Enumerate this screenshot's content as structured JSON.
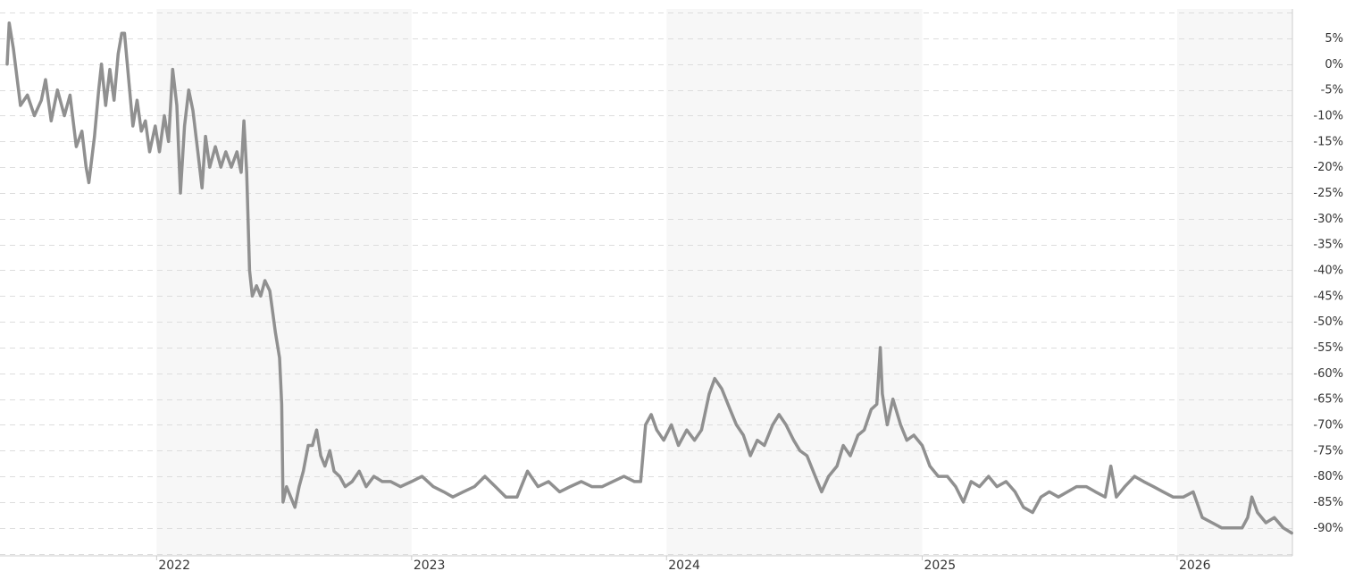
{
  "chart_data": {
    "type": "line",
    "title": "",
    "xlabel": "",
    "ylabel": "",
    "y_unit": "%",
    "ylim": [
      -92,
      8
    ],
    "xlim": [
      "2021-06-01",
      "2026-06-15"
    ],
    "grid": "horizontal dashed",
    "legend": "none",
    "year_labels": [
      "2022",
      "2023",
      "2024",
      "2025",
      "2026"
    ],
    "year_dates": [
      "2022-01-01",
      "2023-01-01",
      "2024-01-01",
      "2025-01-01",
      "2026-01-01"
    ],
    "shaded_years": [
      "2022",
      "2024",
      "2026"
    ],
    "y_ticks": [
      5,
      0,
      -5,
      -10,
      -15,
      -20,
      -25,
      -30,
      -35,
      -40,
      -45,
      -50,
      -55,
      -60,
      -65,
      -70,
      -75,
      -80,
      -85,
      -90
    ],
    "y_tick_labels": [
      "5%",
      "0%",
      "-5%",
      "-10%",
      "-15%",
      "-20%",
      "-25%",
      "-30%",
      "-35%",
      "-40%",
      "-45%",
      "-50%",
      "-55%",
      "-60%",
      "-65%",
      "-70%",
      "-75%",
      "-80%",
      "-85%",
      "-90%"
    ],
    "series": [
      {
        "color": "#909090",
        "points": [
          [
            "2021-06-01",
            0
          ],
          [
            "2021-06-04",
            8
          ],
          [
            "2021-06-10",
            3
          ],
          [
            "2021-06-20",
            -8
          ],
          [
            "2021-06-30",
            -6
          ],
          [
            "2021-07-10",
            -10
          ],
          [
            "2021-07-20",
            -7
          ],
          [
            "2021-07-26",
            -3
          ],
          [
            "2021-08-03",
            -11
          ],
          [
            "2021-08-12",
            -5
          ],
          [
            "2021-08-22",
            -10
          ],
          [
            "2021-08-30",
            -6
          ],
          [
            "2021-09-08",
            -16
          ],
          [
            "2021-09-16",
            -13
          ],
          [
            "2021-09-22",
            -20
          ],
          [
            "2021-09-26",
            -23
          ],
          [
            "2021-10-04",
            -14
          ],
          [
            "2021-10-10",
            -5
          ],
          [
            "2021-10-14",
            0
          ],
          [
            "2021-10-20",
            -8
          ],
          [
            "2021-10-26",
            -1
          ],
          [
            "2021-11-01",
            -7
          ],
          [
            "2021-11-07",
            2
          ],
          [
            "2021-11-12",
            6
          ],
          [
            "2021-11-16",
            6
          ],
          [
            "2021-11-22",
            -3
          ],
          [
            "2021-11-28",
            -12
          ],
          [
            "2021-12-04",
            -7
          ],
          [
            "2021-12-10",
            -13
          ],
          [
            "2021-12-16",
            -11
          ],
          [
            "2021-12-22",
            -17
          ],
          [
            "2021-12-30",
            -12
          ],
          [
            "2022-01-05",
            -17
          ],
          [
            "2022-01-12",
            -10
          ],
          [
            "2022-01-18",
            -15
          ],
          [
            "2022-01-24",
            -1
          ],
          [
            "2022-01-30",
            -8
          ],
          [
            "2022-02-04",
            -25
          ],
          [
            "2022-02-10",
            -12
          ],
          [
            "2022-02-16",
            -5
          ],
          [
            "2022-02-22",
            -9
          ],
          [
            "2022-03-01",
            -17
          ],
          [
            "2022-03-07",
            -24
          ],
          [
            "2022-03-12",
            -14
          ],
          [
            "2022-03-18",
            -20
          ],
          [
            "2022-03-26",
            -16
          ],
          [
            "2022-04-03",
            -20
          ],
          [
            "2022-04-10",
            -17
          ],
          [
            "2022-04-18",
            -20
          ],
          [
            "2022-04-26",
            -17
          ],
          [
            "2022-05-02",
            -21
          ],
          [
            "2022-05-06",
            -11
          ],
          [
            "2022-05-10",
            -21
          ],
          [
            "2022-05-14",
            -40
          ],
          [
            "2022-05-18",
            -45
          ],
          [
            "2022-05-24",
            -43
          ],
          [
            "2022-05-30",
            -45
          ],
          [
            "2022-06-05",
            -42
          ],
          [
            "2022-06-12",
            -44
          ],
          [
            "2022-06-20",
            -52
          ],
          [
            "2022-06-26",
            -57
          ],
          [
            "2022-06-29",
            -66
          ],
          [
            "2022-07-01",
            -85
          ],
          [
            "2022-07-06",
            -82
          ],
          [
            "2022-07-12",
            -84
          ],
          [
            "2022-07-18",
            -86
          ],
          [
            "2022-07-24",
            -82
          ],
          [
            "2022-07-30",
            -79
          ],
          [
            "2022-08-06",
            -74
          ],
          [
            "2022-08-12",
            -74
          ],
          [
            "2022-08-18",
            -71
          ],
          [
            "2022-08-24",
            -76
          ],
          [
            "2022-08-30",
            -78
          ],
          [
            "2022-09-06",
            -75
          ],
          [
            "2022-09-12",
            -79
          ],
          [
            "2022-09-20",
            -80
          ],
          [
            "2022-09-28",
            -82
          ],
          [
            "2022-10-08",
            -81
          ],
          [
            "2022-10-18",
            -79
          ],
          [
            "2022-10-28",
            -82
          ],
          [
            "2022-11-08",
            -80
          ],
          [
            "2022-11-20",
            -81
          ],
          [
            "2022-12-02",
            -81
          ],
          [
            "2022-12-16",
            -82
          ],
          [
            "2023-01-01",
            -81
          ],
          [
            "2023-01-16",
            -80
          ],
          [
            "2023-02-01",
            -82
          ],
          [
            "2023-02-16",
            -83
          ],
          [
            "2023-03-01",
            -84
          ],
          [
            "2023-03-16",
            -83
          ],
          [
            "2023-04-01",
            -82
          ],
          [
            "2023-04-16",
            -80
          ],
          [
            "2023-05-01",
            -82
          ],
          [
            "2023-05-16",
            -84
          ],
          [
            "2023-06-01",
            -84
          ],
          [
            "2023-06-16",
            -79
          ],
          [
            "2023-07-01",
            -82
          ],
          [
            "2023-07-16",
            -81
          ],
          [
            "2023-08-01",
            -83
          ],
          [
            "2023-08-16",
            -82
          ],
          [
            "2023-09-01",
            -81
          ],
          [
            "2023-09-16",
            -82
          ],
          [
            "2023-10-01",
            -82
          ],
          [
            "2023-10-16",
            -81
          ],
          [
            "2023-11-01",
            -80
          ],
          [
            "2023-11-16",
            -81
          ],
          [
            "2023-11-25",
            -81
          ],
          [
            "2023-12-02",
            -70
          ],
          [
            "2023-12-10",
            -68
          ],
          [
            "2023-12-18",
            -71
          ],
          [
            "2023-12-28",
            -73
          ],
          [
            "2024-01-08",
            -70
          ],
          [
            "2024-01-18",
            -74
          ],
          [
            "2024-01-30",
            -71
          ],
          [
            "2024-02-10",
            -73
          ],
          [
            "2024-02-20",
            -71
          ],
          [
            "2024-03-02",
            -64
          ],
          [
            "2024-03-10",
            -61
          ],
          [
            "2024-03-20",
            -63
          ],
          [
            "2024-04-01",
            -67
          ],
          [
            "2024-04-10",
            -70
          ],
          [
            "2024-04-20",
            -72
          ],
          [
            "2024-04-30",
            -76
          ],
          [
            "2024-05-10",
            -73
          ],
          [
            "2024-05-20",
            -74
          ],
          [
            "2024-06-01",
            -70
          ],
          [
            "2024-06-10",
            -68
          ],
          [
            "2024-06-20",
            -70
          ],
          [
            "2024-07-01",
            -73
          ],
          [
            "2024-07-10",
            -75
          ],
          [
            "2024-07-20",
            -76
          ],
          [
            "2024-08-01",
            -80
          ],
          [
            "2024-08-10",
            -83
          ],
          [
            "2024-08-20",
            -80
          ],
          [
            "2024-09-01",
            -78
          ],
          [
            "2024-09-10",
            -74
          ],
          [
            "2024-09-20",
            -76
          ],
          [
            "2024-10-01",
            -72
          ],
          [
            "2024-10-10",
            -71
          ],
          [
            "2024-10-20",
            -67
          ],
          [
            "2024-10-28",
            -66
          ],
          [
            "2024-11-02",
            -55
          ],
          [
            "2024-11-05",
            -64
          ],
          [
            "2024-11-12",
            -70
          ],
          [
            "2024-11-20",
            -65
          ],
          [
            "2024-12-01",
            -70
          ],
          [
            "2024-12-10",
            -73
          ],
          [
            "2024-12-20",
            -72
          ],
          [
            "2025-01-01",
            -74
          ],
          [
            "2025-01-12",
            -78
          ],
          [
            "2025-01-24",
            -80
          ],
          [
            "2025-02-06",
            -80
          ],
          [
            "2025-02-18",
            -82
          ],
          [
            "2025-03-01",
            -85
          ],
          [
            "2025-03-12",
            -81
          ],
          [
            "2025-03-24",
            -82
          ],
          [
            "2025-04-06",
            -80
          ],
          [
            "2025-04-18",
            -82
          ],
          [
            "2025-05-01",
            -81
          ],
          [
            "2025-05-14",
            -83
          ],
          [
            "2025-05-26",
            -86
          ],
          [
            "2025-06-08",
            -87
          ],
          [
            "2025-06-20",
            -84
          ],
          [
            "2025-07-02",
            -83
          ],
          [
            "2025-07-15",
            -84
          ],
          [
            "2025-07-28",
            -83
          ],
          [
            "2025-08-10",
            -82
          ],
          [
            "2025-08-24",
            -82
          ],
          [
            "2025-09-06",
            -83
          ],
          [
            "2025-09-20",
            -84
          ],
          [
            "2025-09-28",
            -78
          ],
          [
            "2025-10-06",
            -84
          ],
          [
            "2025-10-18",
            -82
          ],
          [
            "2025-11-01",
            -80
          ],
          [
            "2025-11-14",
            -81
          ],
          [
            "2025-11-28",
            -82
          ],
          [
            "2025-12-12",
            -83
          ],
          [
            "2025-12-26",
            -84
          ],
          [
            "2026-01-10",
            -84
          ],
          [
            "2026-01-24",
            -83
          ],
          [
            "2026-02-06",
            -88
          ],
          [
            "2026-02-20",
            -89
          ],
          [
            "2026-03-06",
            -90
          ],
          [
            "2026-03-20",
            -90
          ],
          [
            "2026-04-04",
            -90
          ],
          [
            "2026-04-12",
            -88
          ],
          [
            "2026-04-18",
            -84
          ],
          [
            "2026-04-26",
            -87
          ],
          [
            "2026-05-08",
            -89
          ],
          [
            "2026-05-20",
            -88
          ],
          [
            "2026-06-02",
            -90
          ],
          [
            "2026-06-14",
            -91
          ]
        ]
      }
    ]
  }
}
